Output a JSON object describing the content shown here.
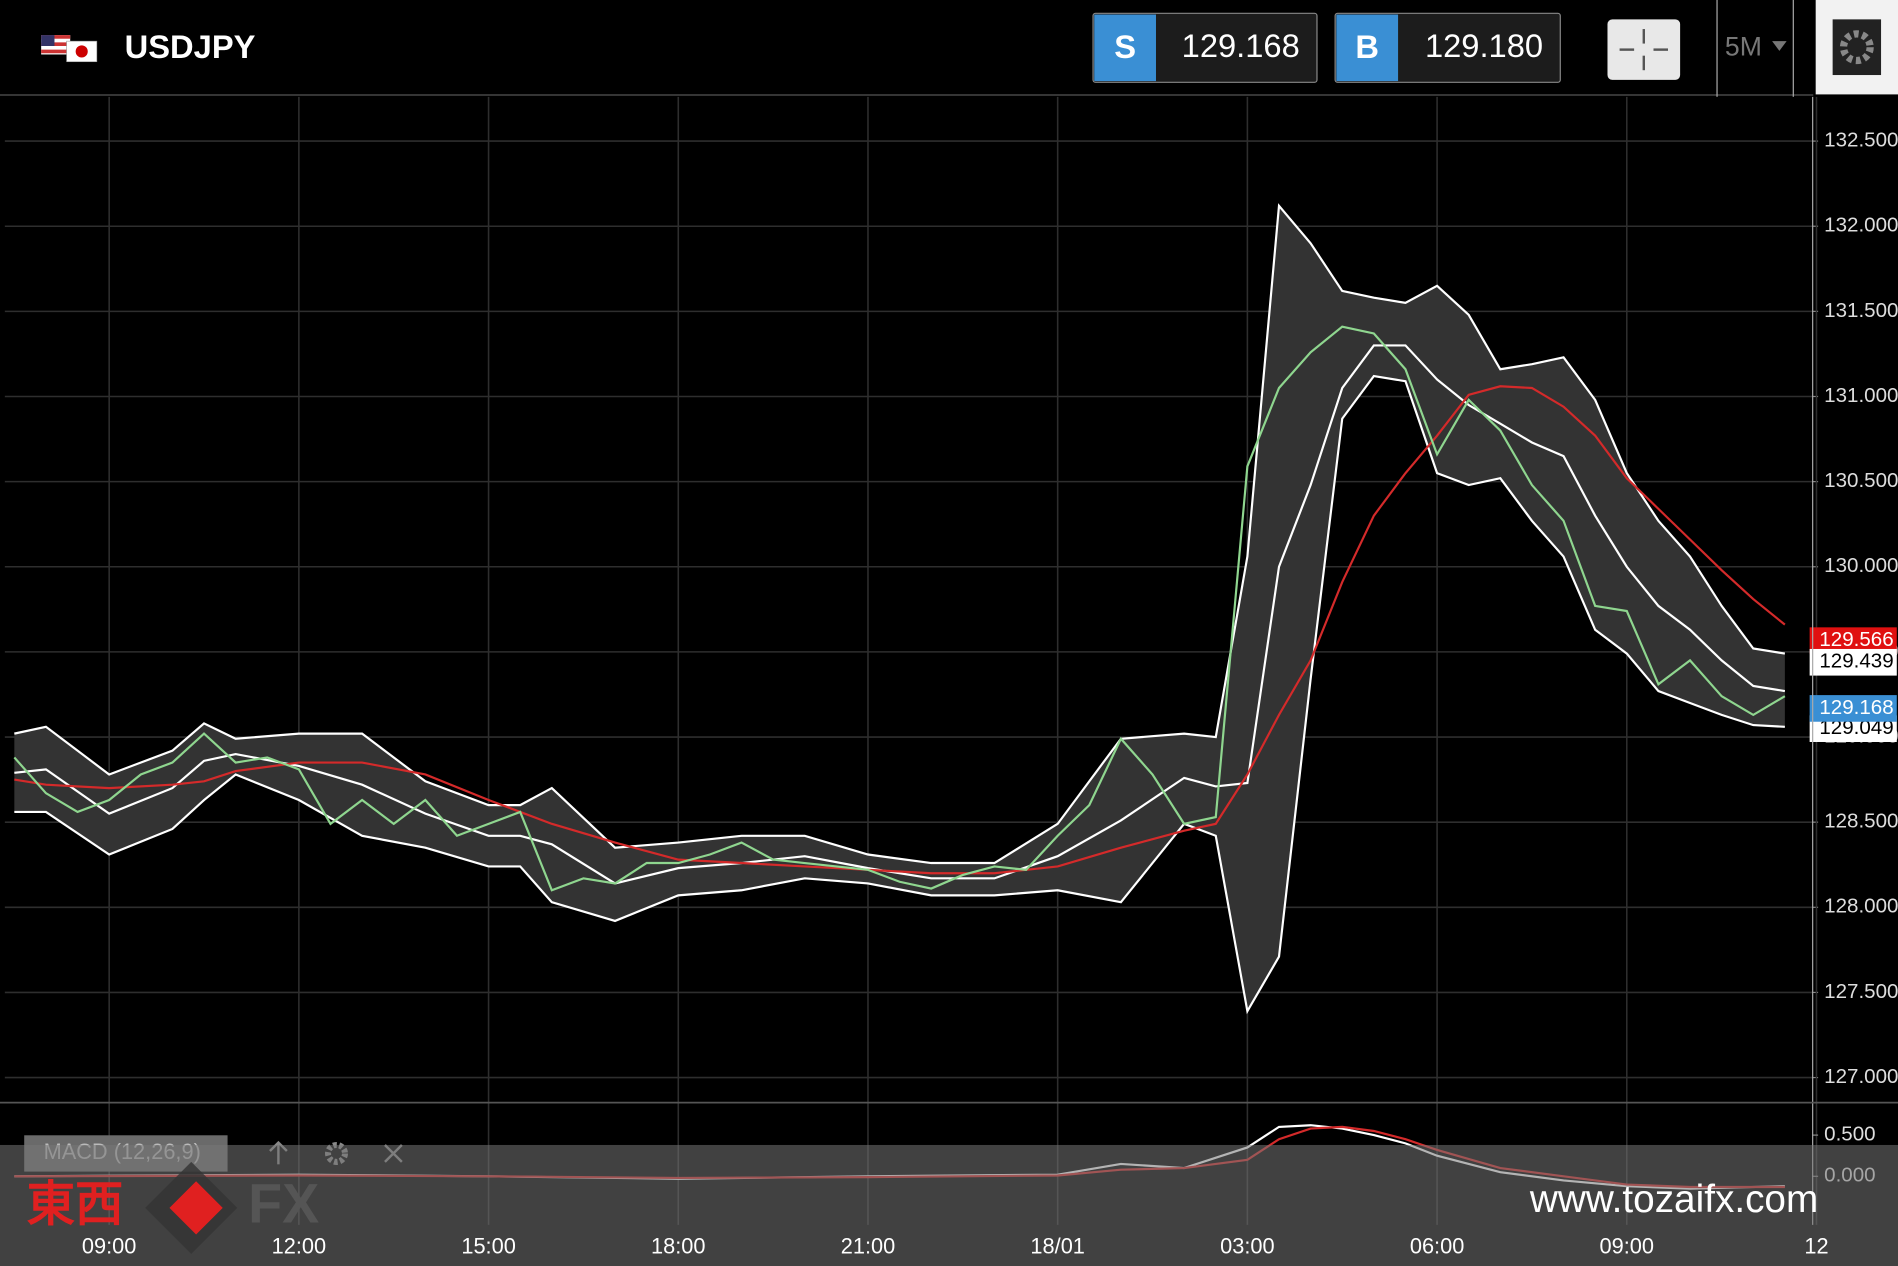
{
  "header": {
    "pair": "USDJPY",
    "sell": {
      "label": "S",
      "price": "129.168"
    },
    "buy": {
      "label": "B",
      "price": "129.180"
    },
    "timeframe": "5M"
  },
  "brand": {
    "east_west": "東西",
    "fx": "FX",
    "url": "www.tozaifx.com"
  },
  "chart_data": [
    {
      "type": "line",
      "xlim": [
        -1.65,
        26.93
      ],
      "xticks": [
        {
          "value": 0,
          "label": "09:00"
        },
        {
          "value": 3,
          "label": "12:00"
        },
        {
          "value": 6,
          "label": "15:00"
        },
        {
          "value": 9,
          "label": "18:00"
        },
        {
          "value": 12,
          "label": "21:00"
        },
        {
          "value": 15,
          "label": "18/01"
        },
        {
          "value": 18,
          "label": "03:00"
        },
        {
          "value": 21,
          "label": "06:00"
        },
        {
          "value": 24,
          "label": "09:00"
        },
        {
          "value": 27,
          "label": "12"
        }
      ],
      "ylim": [
        126.86,
        132.76
      ],
      "yticks": [
        {
          "value": 127,
          "label": "127.000"
        },
        {
          "value": 127.5,
          "label": "127.500"
        },
        {
          "value": 128,
          "label": "128.000"
        },
        {
          "value": 128.5,
          "label": "128.500"
        },
        {
          "value": 129,
          "label": "129.000"
        },
        {
          "value": 129.5,
          "label": "129.500"
        },
        {
          "value": 130,
          "label": "130.000"
        },
        {
          "value": 130.5,
          "label": "130.500"
        },
        {
          "value": 131,
          "label": "131.000"
        },
        {
          "value": 131.5,
          "label": "131.500"
        },
        {
          "value": 132,
          "label": "132.000"
        },
        {
          "value": 132.5,
          "label": "132.500"
        }
      ],
      "grid": true,
      "band_fill": "#333333",
      "series": [
        {
          "color": "#ffffff",
          "x": [
            -1.5,
            -1,
            0,
            1,
            1.5,
            2,
            3,
            4,
            5,
            6,
            6.5,
            7,
            8,
            9,
            10,
            11,
            12,
            13,
            14,
            15,
            16,
            17,
            17.5,
            18,
            18.5,
            19,
            19.5,
            20,
            20.5,
            21,
            21.5,
            22,
            22.5,
            23,
            23.5,
            24,
            24.5,
            25,
            25.5,
            26,
            26.5
          ],
          "values": [
            129.02,
            129.06,
            128.78,
            128.92,
            129.08,
            128.99,
            129.02,
            129.02,
            128.74,
            128.6,
            128.6,
            128.7,
            128.35,
            128.38,
            128.42,
            128.42,
            128.31,
            128.26,
            128.26,
            128.49,
            128.99,
            129.02,
            129.0,
            130.06,
            132.12,
            131.9,
            131.62,
            131.58,
            131.55,
            131.65,
            131.48,
            131.16,
            131.19,
            131.23,
            130.98,
            130.55,
            130.27,
            130.06,
            129.77,
            129.52,
            129.49
          ]
        },
        {
          "color": "#ffffff",
          "x": [
            -1.5,
            -1,
            0,
            1,
            1.5,
            2,
            3,
            4,
            5,
            6,
            6.5,
            7,
            8,
            9,
            10,
            11,
            12,
            13,
            14,
            15,
            16,
            17,
            17.5,
            18,
            18.5,
            19,
            19.5,
            20,
            20.5,
            21,
            21.5,
            22,
            22.5,
            23,
            23.5,
            24,
            24.5,
            25,
            25.5,
            26,
            26.5
          ],
          "values": [
            128.56,
            128.56,
            128.31,
            128.46,
            128.63,
            128.78,
            128.63,
            128.42,
            128.35,
            128.24,
            128.24,
            128.03,
            127.92,
            128.07,
            128.1,
            128.17,
            128.14,
            128.07,
            128.07,
            128.1,
            128.03,
            128.49,
            128.42,
            127.39,
            127.71,
            129.34,
            130.87,
            131.12,
            131.09,
            130.55,
            130.48,
            130.52,
            130.27,
            130.06,
            129.63,
            129.49,
            129.27,
            129.2,
            129.13,
            129.07,
            129.06
          ]
        },
        {
          "color": "#ffffff",
          "x": [
            -1.5,
            -1,
            0,
            1,
            1.5,
            2,
            3,
            4,
            5,
            6,
            6.5,
            7,
            8,
            9,
            10,
            11,
            12,
            13,
            14,
            15,
            16,
            17,
            17.5,
            18,
            18.5,
            19,
            19.5,
            20,
            20.5,
            21,
            21.5,
            22,
            22.5,
            23,
            23.5,
            24,
            24.5,
            25,
            25.5,
            26,
            26.5
          ],
          "values": [
            128.79,
            128.81,
            128.55,
            128.7,
            128.86,
            128.9,
            128.83,
            128.72,
            128.55,
            128.42,
            128.42,
            128.37,
            128.14,
            128.23,
            128.26,
            128.3,
            128.23,
            128.17,
            128.17,
            128.3,
            128.51,
            128.76,
            128.71,
            128.73,
            130.0,
            130.48,
            131.05,
            131.3,
            131.3,
            131.1,
            130.95,
            130.84,
            130.73,
            130.65,
            130.3,
            130.0,
            129.77,
            129.63,
            129.45,
            129.3,
            129.27
          ]
        },
        {
          "color": "#d42a2a",
          "x": [
            -1.5,
            -1,
            0,
            1,
            1.5,
            2,
            3,
            4,
            5,
            6,
            6.5,
            7,
            8,
            9,
            10,
            11,
            12,
            13,
            14,
            15,
            16,
            17,
            17.5,
            18,
            18.5,
            19,
            19.5,
            20,
            20.5,
            21,
            21.5,
            22,
            22.5,
            23,
            23.5,
            24,
            24.5,
            25,
            25.5,
            26,
            26.5
          ],
          "values": [
            128.75,
            128.72,
            128.7,
            128.72,
            128.74,
            128.8,
            128.85,
            128.85,
            128.78,
            128.63,
            128.56,
            128.49,
            128.38,
            128.28,
            128.26,
            128.24,
            128.22,
            128.2,
            128.2,
            128.24,
            128.35,
            128.45,
            128.49,
            128.78,
            129.13,
            129.45,
            129.91,
            130.3,
            130.55,
            130.77,
            131.01,
            131.06,
            131.05,
            130.94,
            130.77,
            130.52,
            130.34,
            130.16,
            129.98,
            129.81,
            129.66
          ]
        },
        {
          "color": "#8fd68f",
          "x": [
            -1.5,
            -1,
            -0.5,
            0,
            0.5,
            1,
            1.5,
            2,
            2.5,
            3,
            3.5,
            4,
            4.5,
            5,
            5.5,
            6,
            6.5,
            7,
            7.5,
            8,
            8.5,
            9,
            9.5,
            10,
            10.5,
            11,
            11.5,
            12,
            12.5,
            13,
            13.5,
            14,
            14.5,
            15,
            15.5,
            16,
            16.5,
            17,
            17.5,
            18,
            18.5,
            19,
            19.5,
            20,
            20.5,
            21,
            21.5,
            22,
            22.5,
            23,
            23.5,
            24,
            24.5,
            25,
            25.5,
            26,
            26.5
          ],
          "values": [
            128.88,
            128.67,
            128.56,
            128.63,
            128.78,
            128.85,
            129.02,
            128.85,
            128.88,
            128.81,
            128.49,
            128.63,
            128.49,
            128.63,
            128.42,
            128.49,
            128.56,
            128.1,
            128.17,
            128.14,
            128.26,
            128.26,
            128.31,
            128.38,
            128.28,
            128.26,
            128.24,
            128.22,
            128.15,
            128.11,
            128.19,
            128.24,
            128.22,
            128.42,
            128.6,
            128.99,
            128.78,
            128.49,
            128.53,
            130.59,
            131.05,
            131.26,
            131.41,
            131.37,
            131.16,
            130.66,
            130.98,
            130.8,
            130.48,
            130.27,
            129.77,
            129.74,
            129.31,
            129.45,
            129.24,
            129.13,
            129.24
          ]
        }
      ],
      "price_labels": [
        {
          "value": 129.566,
          "color": "#e01010"
        },
        {
          "value": 129.439,
          "color": "#ffffff"
        },
        {
          "value": 129.049,
          "color": "#ffffff"
        },
        {
          "value": 129.168,
          "color": "#3a8fd4"
        }
      ]
    },
    {
      "type": "line",
      "title": "MACD (12,26,9)",
      "xlim": [
        -1.65,
        26.93
      ],
      "ylim": [
        -0.56,
        0.88
      ],
      "yticks": [
        {
          "value": 0,
          "label": "0.000"
        },
        {
          "value": 0.5,
          "label": "0.500"
        }
      ],
      "series": [
        {
          "color": "#ffffff",
          "x": [
            -1.5,
            3,
            6,
            9,
            12,
            15,
            16,
            17,
            18,
            18.5,
            19,
            19.5,
            20,
            20.5,
            21,
            22,
            23,
            24,
            25,
            26.5
          ],
          "values": [
            0,
            0.02,
            0,
            -0.03,
            0,
            0.02,
            0.15,
            0.1,
            0.35,
            0.6,
            0.62,
            0.58,
            0.5,
            0.4,
            0.25,
            0.05,
            -0.05,
            -0.12,
            -0.15,
            -0.12
          ]
        },
        {
          "color": "#d42a2a",
          "x": [
            -1.5,
            3,
            6,
            9,
            12,
            15,
            16,
            17,
            18,
            18.5,
            19,
            19.5,
            20,
            20.5,
            21,
            22,
            23,
            24,
            25,
            26.5
          ],
          "values": [
            0,
            0.01,
            0,
            -0.02,
            -0.01,
            0.01,
            0.08,
            0.1,
            0.2,
            0.45,
            0.58,
            0.6,
            0.55,
            0.45,
            0.32,
            0.1,
            0,
            -0.1,
            -0.13,
            -0.13
          ]
        }
      ]
    }
  ]
}
